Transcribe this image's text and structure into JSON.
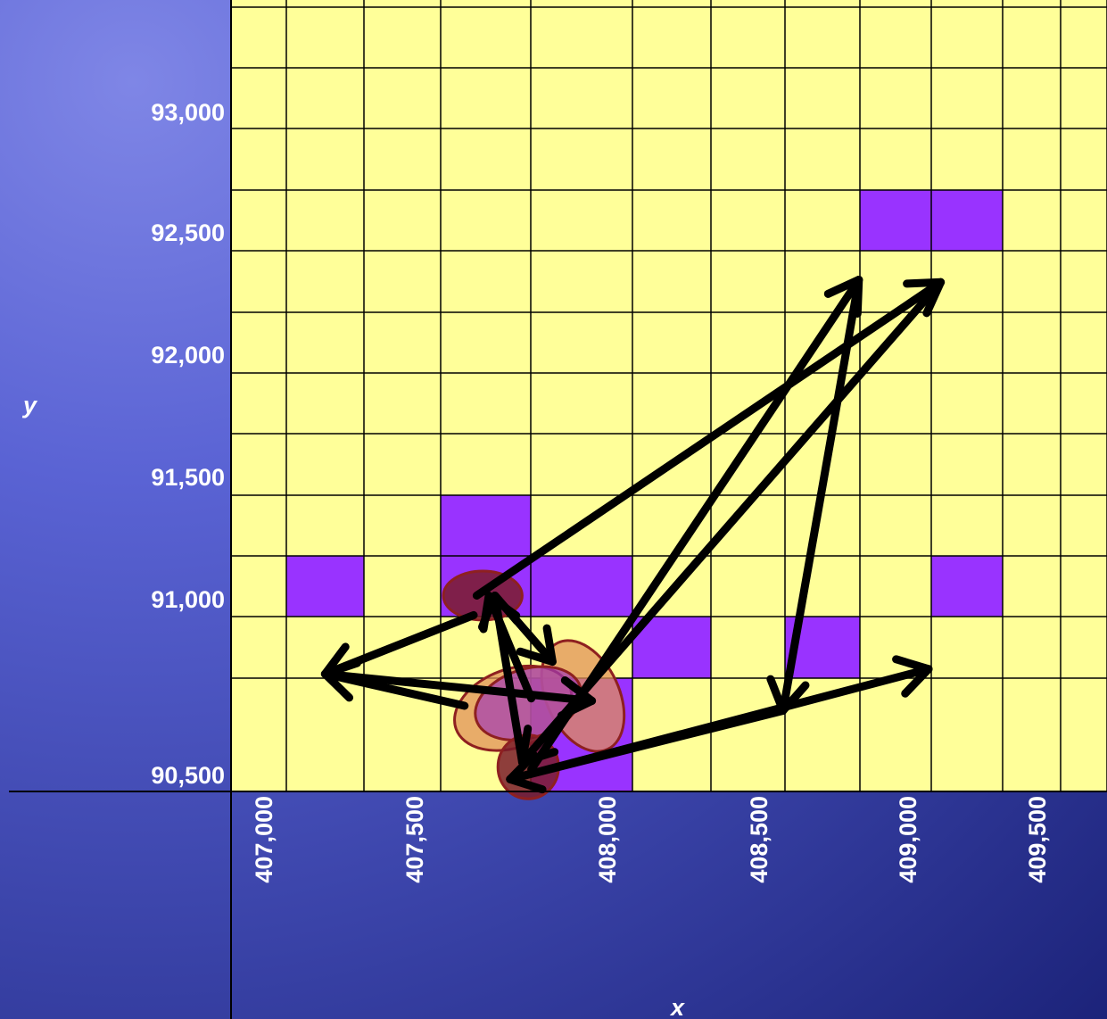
{
  "chart_data": {
    "type": "scatter",
    "xlabel": "x",
    "ylabel": "y",
    "x_ticks": [
      "407,000",
      "407,500",
      "408,000",
      "408,500",
      "409,000",
      "409,500"
    ],
    "y_ticks": [
      "90,500",
      "91,000",
      "91,500",
      "92,000",
      "92,500",
      "93,000"
    ],
    "xlim": [
      406950,
      409900
    ],
    "ylim": [
      90500,
      93200
    ],
    "grid": true,
    "grid_cell_size": 250,
    "colors": {
      "background_cell": "#ffff99",
      "highlight_cell": "#9933ff",
      "arrow": "#000000",
      "ellipse_dark": "#7a1c2a",
      "ellipse_orange": "#e0905a",
      "ellipse_purple": "#a23ab5",
      "ellipse_stroke": "#8e2020"
    },
    "highlighted_cells": [
      {
        "x": 407250,
        "y": 91000
      },
      {
        "x": 407750,
        "y": 91000
      },
      {
        "x": 407750,
        "y": 91250
      },
      {
        "x": 408000,
        "y": 91000
      },
      {
        "x": 408250,
        "y": 90750
      },
      {
        "x": 408750,
        "y": 90750
      },
      {
        "x": 408000,
        "y": 90500
      },
      {
        "x": 409000,
        "y": 92500
      },
      {
        "x": 409250,
        "y": 92500
      },
      {
        "x": 409250,
        "y": 91000
      }
    ],
    "arrows": [
      {
        "from": [
          407940,
          90590
        ],
        "to": [
          409020,
          92590
        ]
      },
      {
        "from": [
          409020,
          92590
        ],
        "to": [
          408770,
          90830
        ]
      },
      {
        "from": [
          408770,
          90830
        ],
        "to": [
          407870,
          90550
        ]
      },
      {
        "from": [
          407870,
          90550
        ],
        "to": [
          409250,
          91000
        ]
      },
      {
        "from": [
          407760,
          91300
        ],
        "to": [
          409290,
          92580
        ]
      },
      {
        "from": [
          409290,
          92580
        ],
        "to": [
          407910,
          90620
        ]
      },
      {
        "from": [
          407910,
          90620
        ],
        "to": [
          407820,
          91300
        ]
      },
      {
        "from": [
          407820,
          91300
        ],
        "to": [
          408010,
          91030
        ]
      },
      {
        "from": [
          407750,
          91220
        ],
        "to": [
          407260,
          90980
        ]
      },
      {
        "from": [
          407260,
          90980
        ],
        "to": [
          408140,
          90870
        ]
      },
      {
        "from": [
          407720,
          90850
        ],
        "to": [
          407260,
          90980
        ]
      },
      {
        "from": [
          407940,
          90880
        ],
        "to": [
          407800,
          91300
        ]
      }
    ],
    "ellipses": [
      {
        "cx": 407780,
        "cy": 91300,
        "rx": 130,
        "ry": 100,
        "tone": "dark"
      },
      {
        "cx": 408110,
        "cy": 90890,
        "rx": 120,
        "ry": 240,
        "tone": "orange"
      },
      {
        "cx": 407880,
        "cy": 90840,
        "rx": 200,
        "ry": 160,
        "tone": "orange"
      },
      {
        "cx": 407930,
        "cy": 90860,
        "rx": 180,
        "ry": 140,
        "tone": "purple"
      },
      {
        "cx": 407930,
        "cy": 90600,
        "rx": 100,
        "ry": 130,
        "tone": "dark"
      }
    ]
  }
}
